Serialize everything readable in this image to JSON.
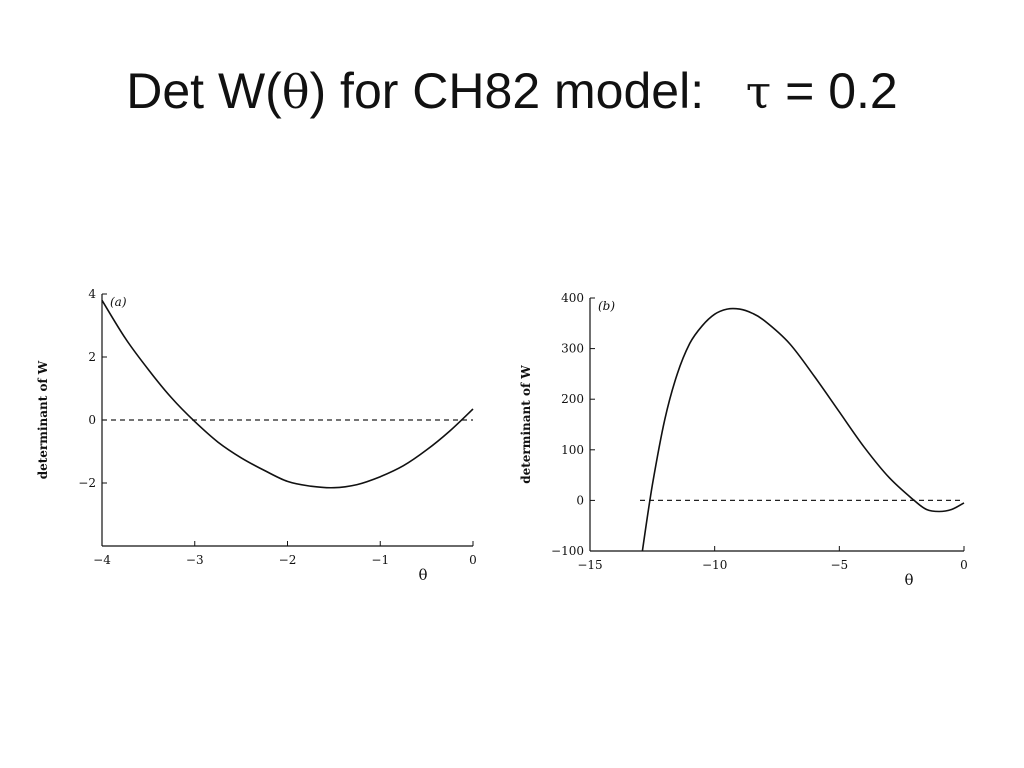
{
  "slide": {
    "title_prefix": "Det W(",
    "title_theta": "θ",
    "title_middle": ") for CH82 model:   ",
    "title_tau": "τ",
    "title_suffix": " = 0.2"
  },
  "chart_data": [
    {
      "type": "line",
      "panel_label": "(a)",
      "ylabel": "determinant of W",
      "xlabel": "θ",
      "xlim": [
        -4,
        0
      ],
      "ylim": [
        -4,
        4
      ],
      "x_ticks": [
        -4,
        -3,
        -2,
        -1,
        0
      ],
      "x_tick_labels": [
        "−4",
        "−3",
        "−2",
        "−1",
        "0"
      ],
      "y_ticks": [
        4,
        2,
        0,
        -2
      ],
      "y_tick_labels": [
        "4",
        "2",
        "0",
        "−2"
      ],
      "reference_line": {
        "y": 0,
        "style": "dashed"
      },
      "series": [
        {
          "x": [
            -4.0,
            -3.75,
            -3.5,
            -3.25,
            -3.0,
            -2.75,
            -2.5,
            -2.25,
            -2.0,
            -1.75,
            -1.5,
            -1.25,
            -1.0,
            -0.75,
            -0.5,
            -0.25,
            0.0
          ],
          "y": [
            3.8,
            2.6,
            1.6,
            0.7,
            -0.05,
            -0.7,
            -1.2,
            -1.6,
            -1.95,
            -2.1,
            -2.15,
            -2.05,
            -1.8,
            -1.45,
            -0.95,
            -0.35,
            0.35
          ]
        }
      ],
      "grid": false
    },
    {
      "type": "line",
      "panel_label": "(b)",
      "ylabel": "determinant of W",
      "xlabel": "θ",
      "xlim": [
        -15,
        0
      ],
      "ylim": [
        -100,
        400
      ],
      "x_ticks": [
        -15,
        -10,
        -5,
        0
      ],
      "x_tick_labels": [
        "−15",
        "−10",
        "−5",
        "0"
      ],
      "y_ticks": [
        400,
        300,
        200,
        100,
        0,
        -100
      ],
      "y_tick_labels": [
        "400",
        "300",
        "200",
        "100",
        "0",
        "−100"
      ],
      "reference_line": {
        "y": 0,
        "style": "dashed"
      },
      "series": [
        {
          "x": [
            -12.9,
            -12.5,
            -12.0,
            -11.5,
            -11.0,
            -10.5,
            -10.0,
            -9.5,
            -9.0,
            -8.5,
            -8.0,
            -7.0,
            -6.0,
            -5.0,
            -4.0,
            -3.0,
            -2.0,
            -1.5,
            -1.0,
            -0.5,
            0.0
          ],
          "y": [
            -100,
            30,
            160,
            250,
            310,
            345,
            368,
            378,
            378,
            370,
            355,
            310,
            245,
            175,
            105,
            45,
            0,
            -18,
            -22,
            -18,
            -5
          ]
        }
      ],
      "grid": false
    }
  ]
}
